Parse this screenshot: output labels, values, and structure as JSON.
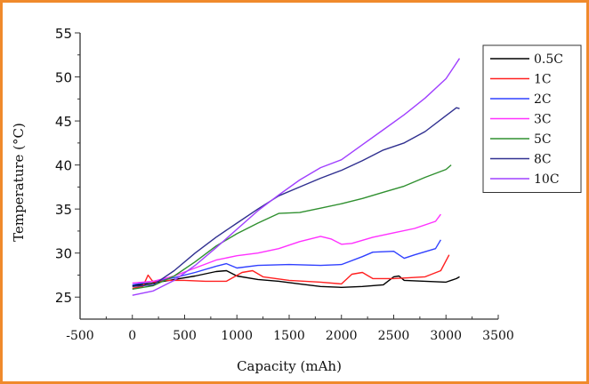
{
  "chart_data": {
    "type": "line",
    "title": "",
    "xlabel": "Capacity (mAh)",
    "ylabel": "Temperature (°C)",
    "xlim": [
      -500,
      3500
    ],
    "ylim": [
      22.5,
      55
    ],
    "xticks": [
      -500,
      0,
      500,
      1000,
      1500,
      2000,
      2500,
      3000,
      3500
    ],
    "yticks": [
      25,
      30,
      35,
      40,
      45,
      50,
      55
    ],
    "legend_position": "top-right",
    "grid": false,
    "series": [
      {
        "name": "0.5C",
        "color": "#000000",
        "x": [
          0,
          200,
          400,
          600,
          800,
          900,
          1000,
          1200,
          1400,
          1600,
          1800,
          2000,
          2200,
          2400,
          2500,
          2550,
          2600,
          2800,
          3000,
          3100,
          3130
        ],
        "y": [
          26.3,
          26.6,
          27.0,
          27.4,
          27.9,
          28.0,
          27.4,
          27.0,
          26.8,
          26.5,
          26.2,
          26.1,
          26.2,
          26.4,
          27.3,
          27.4,
          26.9,
          26.8,
          26.7,
          27.1,
          27.3
        ]
      },
      {
        "name": "1C",
        "color": "#ff2020",
        "x": [
          0,
          100,
          150,
          200,
          300,
          500,
          700,
          900,
          1050,
          1150,
          1250,
          1500,
          1800,
          2000,
          2100,
          2200,
          2300,
          2500,
          2800,
          2950,
          3030
        ],
        "y": [
          26.0,
          26.2,
          27.5,
          26.7,
          26.9,
          26.9,
          26.8,
          26.8,
          27.8,
          28.0,
          27.3,
          26.9,
          26.7,
          26.5,
          27.6,
          27.8,
          27.1,
          27.1,
          27.3,
          28.0,
          29.8
        ]
      },
      {
        "name": "2C",
        "color": "#3040ff",
        "x": [
          0,
          200,
          400,
          600,
          800,
          900,
          1000,
          1200,
          1500,
          1800,
          2000,
          2200,
          2300,
          2500,
          2600,
          2700,
          2900,
          2950
        ],
        "y": [
          26.4,
          26.8,
          27.2,
          27.8,
          28.5,
          28.8,
          28.3,
          28.6,
          28.7,
          28.6,
          28.7,
          29.6,
          30.1,
          30.2,
          29.4,
          29.8,
          30.5,
          31.5
        ]
      },
      {
        "name": "3C",
        "color": "#ff30ff",
        "x": [
          0,
          200,
          400,
          600,
          800,
          1000,
          1200,
          1400,
          1600,
          1800,
          1900,
          2000,
          2100,
          2300,
          2500,
          2700,
          2900,
          2950
        ],
        "y": [
          26.6,
          26.8,
          27.4,
          28.3,
          29.2,
          29.7,
          30.0,
          30.5,
          31.3,
          31.9,
          31.6,
          31.0,
          31.1,
          31.8,
          32.3,
          32.8,
          33.6,
          34.4
        ]
      },
      {
        "name": "5C",
        "color": "#309030",
        "x": [
          0,
          200,
          400,
          600,
          800,
          1000,
          1200,
          1400,
          1600,
          1800,
          2000,
          2200,
          2400,
          2600,
          2800,
          3000,
          3050
        ],
        "y": [
          25.9,
          26.3,
          27.4,
          29.0,
          30.8,
          32.2,
          33.4,
          34.5,
          34.6,
          35.1,
          35.6,
          36.2,
          36.9,
          37.6,
          38.6,
          39.5,
          40.0
        ]
      },
      {
        "name": "8C",
        "color": "#303090",
        "x": [
          0,
          200,
          400,
          600,
          800,
          1000,
          1200,
          1400,
          1600,
          1800,
          2000,
          2200,
          2400,
          2600,
          2800,
          3000,
          3100,
          3130
        ],
        "y": [
          26.2,
          26.4,
          28.0,
          30.0,
          31.8,
          33.4,
          35.0,
          36.5,
          37.5,
          38.5,
          39.4,
          40.5,
          41.7,
          42.5,
          43.8,
          45.6,
          46.5,
          46.4
        ]
      },
      {
        "name": "10C",
        "color": "#a040ff",
        "x": [
          0,
          200,
          400,
          600,
          800,
          1000,
          1200,
          1400,
          1600,
          1800,
          2000,
          2200,
          2400,
          2600,
          2800,
          3000,
          3130
        ],
        "y": [
          25.2,
          25.7,
          26.9,
          28.6,
          30.6,
          32.7,
          34.8,
          36.6,
          38.3,
          39.7,
          40.6,
          42.3,
          44.0,
          45.7,
          47.6,
          49.8,
          52.1
        ]
      }
    ]
  }
}
